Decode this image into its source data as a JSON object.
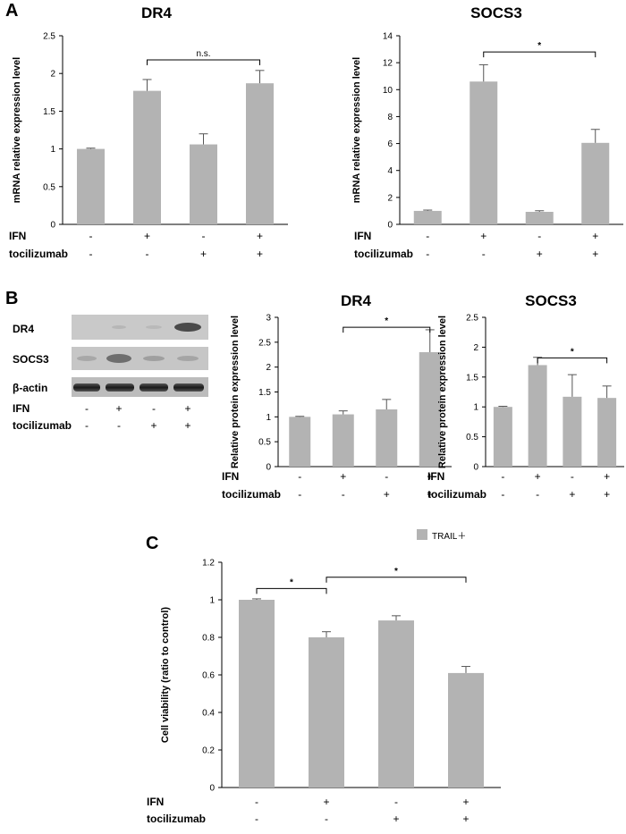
{
  "panels": {
    "a": "A",
    "b": "B",
    "c": "C"
  },
  "blot": {
    "rows": [
      "DR4",
      "SOCS3",
      "β-actin"
    ],
    "condition_labels": [
      "IFN",
      "tocilizumab"
    ],
    "ifn_signs": [
      "-",
      "+",
      "-",
      "+"
    ],
    "toc_signs": [
      "-",
      "-",
      "+",
      "+"
    ]
  },
  "chart_data": [
    {
      "id": "A_DR4",
      "type": "bar",
      "title": "DR4",
      "ylabel": "mRNA relative expression level",
      "ylim": [
        0,
        2.5
      ],
      "yticks": [
        0,
        0.5,
        1,
        1.5,
        2,
        2.5
      ],
      "ytick_labels": [
        "0",
        "0.5",
        "1",
        "1.5",
        "2",
        "2.5"
      ],
      "values": [
        1.0,
        1.77,
        1.06,
        1.87
      ],
      "errors": [
        0.01,
        0.15,
        0.14,
        0.17
      ],
      "color": "#b3b3b3",
      "condition_labels": [
        "IFN",
        "tocilizumab"
      ],
      "ifn_signs": [
        "-",
        "+",
        "-",
        "+"
      ],
      "toc_signs": [
        "-",
        "-",
        "+",
        "+"
      ],
      "significance": [
        {
          "from": 1,
          "to": 3,
          "label": "n.s.",
          "level": 2.18
        }
      ]
    },
    {
      "id": "A_SOCS3",
      "type": "bar",
      "title": "SOCS3",
      "ylabel": "mRNA relative expression level",
      "ylim": [
        0,
        14
      ],
      "yticks": [
        0,
        2,
        4,
        6,
        8,
        10,
        12,
        14
      ],
      "ytick_labels": [
        "0",
        "2",
        "4",
        "6",
        "8",
        "10",
        "12",
        "14"
      ],
      "values": [
        1.0,
        10.6,
        0.93,
        6.05
      ],
      "errors": [
        0.06,
        1.25,
        0.08,
        1.0
      ],
      "color": "#b3b3b3",
      "condition_labels": [
        "IFN",
        "tocilizumab"
      ],
      "ifn_signs": [
        "-",
        "+",
        "-",
        "+"
      ],
      "toc_signs": [
        "-",
        "-",
        "+",
        "+"
      ],
      "significance": [
        {
          "from": 1,
          "to": 3,
          "label": "*",
          "level": 12.8
        }
      ]
    },
    {
      "id": "B_DR4",
      "type": "bar",
      "title": "DR4",
      "ylabel": "Relative protein expression level",
      "ylim": [
        0,
        3
      ],
      "yticks": [
        0,
        0.5,
        1,
        1.5,
        2,
        2.5,
        3
      ],
      "ytick_labels": [
        "0",
        "0.5",
        "1",
        "1.5",
        "2",
        "2.5",
        "3"
      ],
      "values": [
        1.0,
        1.05,
        1.15,
        2.3
      ],
      "errors": [
        0.01,
        0.07,
        0.2,
        0.45
      ],
      "color": "#b3b3b3",
      "condition_labels": [
        "IFN",
        "tocilizumab"
      ],
      "ifn_signs": [
        "-",
        "+",
        "-",
        "+"
      ],
      "toc_signs": [
        "-",
        "-",
        "+",
        "+"
      ],
      "significance": [
        {
          "from": 1,
          "to": 3,
          "label": "*",
          "level": 2.8
        }
      ]
    },
    {
      "id": "B_SOCS3",
      "type": "bar",
      "title": "SOCS3",
      "ylabel": "Relative protein expression level",
      "ylim": [
        0,
        2.5
      ],
      "yticks": [
        0,
        0.5,
        1,
        1.5,
        2,
        2.5
      ],
      "ytick_labels": [
        "0",
        "0.5",
        "1",
        "1.5",
        "2",
        "2.5"
      ],
      "values": [
        1.0,
        1.7,
        1.17,
        1.15
      ],
      "errors": [
        0.01,
        0.13,
        0.37,
        0.2
      ],
      "color": "#b3b3b3",
      "condition_labels": [
        "IFN",
        "tocilizumab"
      ],
      "ifn_signs": [
        "-",
        "+",
        "-",
        "+"
      ],
      "toc_signs": [
        "-",
        "-",
        "+",
        "+"
      ],
      "significance": [
        {
          "from": 1,
          "to": 3,
          "label": "*",
          "level": 1.82
        }
      ]
    },
    {
      "id": "C",
      "type": "bar",
      "title": "",
      "ylabel": "Cell viability (ratio to control)",
      "ylim": [
        0,
        1.2
      ],
      "yticks": [
        0,
        0.2,
        0.4,
        0.6,
        0.8,
        1,
        1.2
      ],
      "ytick_labels": [
        "0",
        "0.2",
        "0.4",
        "0.6",
        "0.8",
        "1",
        "1.2"
      ],
      "values": [
        1.0,
        0.8,
        0.89,
        0.61
      ],
      "errors": [
        0.005,
        0.03,
        0.025,
        0.035
      ],
      "color": "#b3b3b3",
      "legend": {
        "label": "TRAIL＋",
        "position": "top-right"
      },
      "condition_labels": [
        "IFN",
        "tocilizumab"
      ],
      "ifn_signs": [
        "-",
        "+",
        "-",
        "+"
      ],
      "toc_signs": [
        "-",
        "-",
        "+",
        "+"
      ],
      "significance": [
        {
          "from": 0,
          "to": 1,
          "label": "*",
          "level": 1.06
        },
        {
          "from": 1,
          "to": 3,
          "label": "*",
          "level": 1.12
        }
      ]
    }
  ]
}
